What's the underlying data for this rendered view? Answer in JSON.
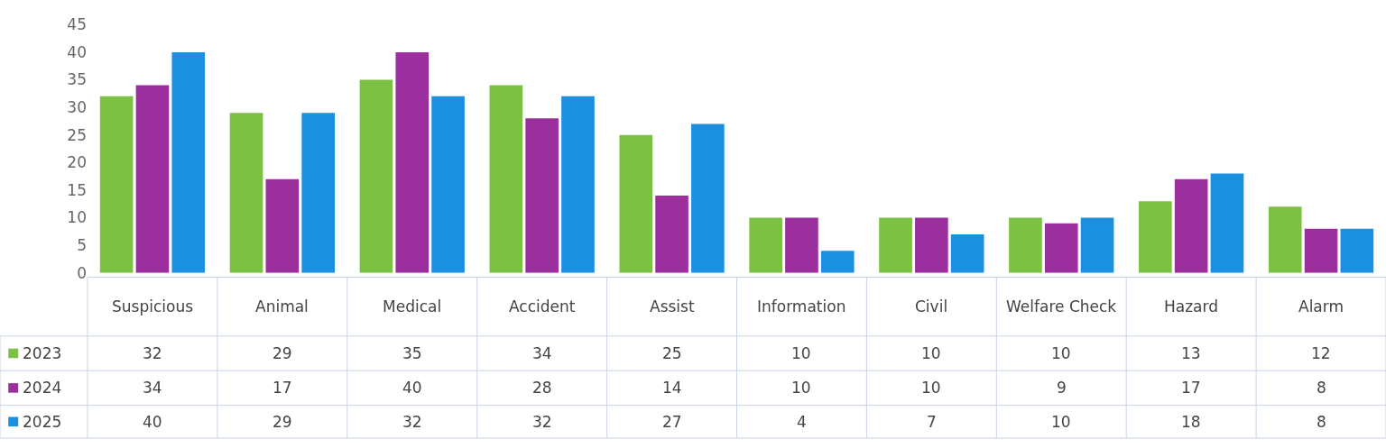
{
  "chart_data": {
    "type": "bar",
    "categories": [
      "Suspicious",
      "Animal",
      "Medical",
      "Accident",
      "Assist",
      "Information",
      "Civil",
      "Welfare Check",
      "Hazard",
      "Alarm"
    ],
    "series": [
      {
        "name": "2023",
        "color": "#7cc143",
        "values": [
          32,
          29,
          35,
          34,
          25,
          10,
          10,
          10,
          13,
          12
        ]
      },
      {
        "name": "2024",
        "color": "#9c2f9e",
        "values": [
          34,
          17,
          40,
          28,
          14,
          10,
          10,
          9,
          17,
          8
        ]
      },
      {
        "name": "2025",
        "color": "#1b8fe0",
        "values": [
          40,
          29,
          32,
          32,
          27,
          4,
          7,
          10,
          18,
          8
        ]
      }
    ],
    "ylim": [
      0,
      45
    ],
    "yticks": [
      0,
      5,
      10,
      15,
      20,
      25,
      30,
      35,
      40,
      45
    ],
    "data_labels": true,
    "legend": "bottom left"
  }
}
